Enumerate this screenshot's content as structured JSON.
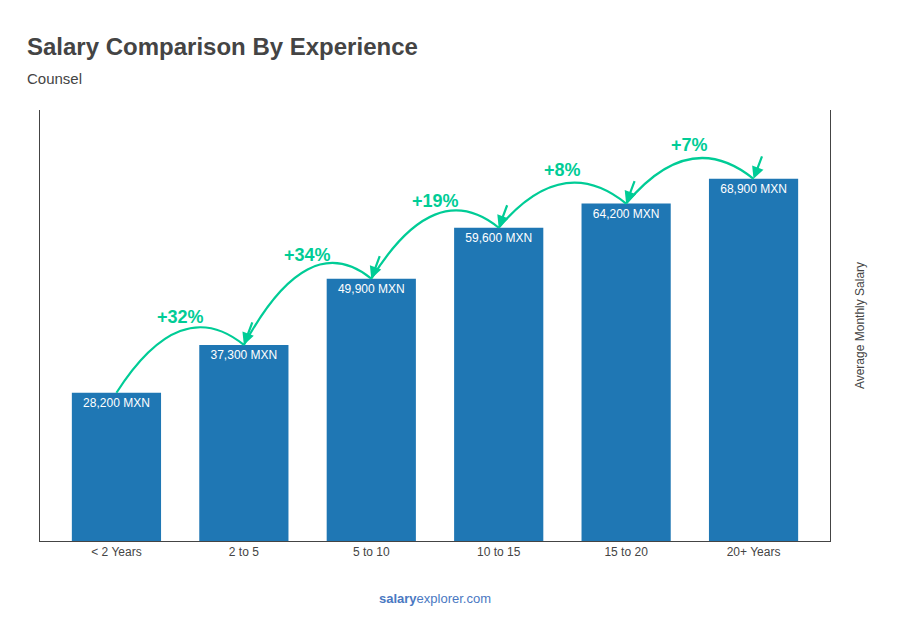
{
  "chart_data": {
    "type": "bar",
    "title": "Salary Comparison By Experience",
    "subtitle": "Counsel",
    "ylabel": "Average Monthly Salary",
    "watermark": [
      "salary",
      "explorer.com"
    ],
    "categories": [
      "< 2 Years",
      "2 to 5",
      "5 to 10",
      "10 to 15",
      "15 to 20",
      "20+ Years"
    ],
    "values": [
      28200,
      37300,
      49900,
      59600,
      64200,
      68900
    ],
    "value_labels": [
      "28,200 MXN",
      "37,300 MXN",
      "49,900 MXN",
      "59,600 MXN",
      "64,200 MXN",
      "68,900 MXN"
    ],
    "annotations": [
      {
        "from": "< 2 Years",
        "to": "2 to 5",
        "text": "+32%"
      },
      {
        "from": "2 to 5",
        "to": "5 to 10",
        "text": "+34%"
      },
      {
        "from": "5 to 10",
        "to": "10 to 15",
        "text": "+19%"
      },
      {
        "from": "10 to 15",
        "to": "15 to 20",
        "text": "+8%"
      },
      {
        "from": "15 to 20",
        "to": "20+ Years",
        "text": "+7%"
      }
    ],
    "ylim": [
      0,
      82000
    ],
    "yticks": [],
    "tick_labels": "x",
    "grid": false
  }
}
